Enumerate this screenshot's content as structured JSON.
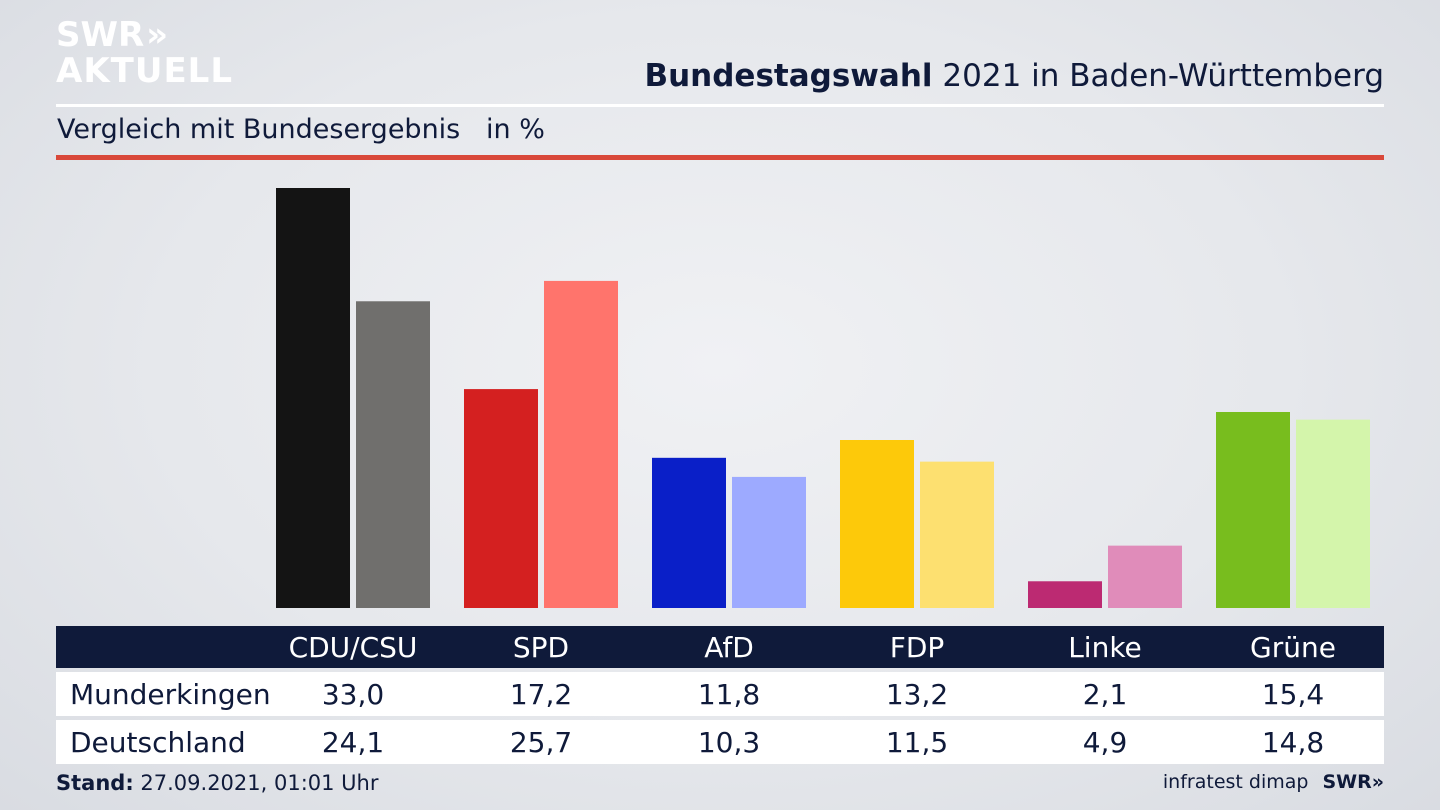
{
  "brand": {
    "line1": "SWR",
    "chevrons": "»",
    "line2": "AKTUELL"
  },
  "title": {
    "bold": "Bundestagswahl",
    "rest": " 2021 in Baden-Württemberg"
  },
  "subtitle": "Vergleich mit Bundesergebnis   in %",
  "chart_data": {
    "type": "bar",
    "categories": [
      "CDU/CSU",
      "SPD",
      "AfD",
      "FDP",
      "Linke",
      "Grüne"
    ],
    "series": [
      {
        "name": "Munderkingen",
        "values": [
          33.0,
          17.2,
          11.8,
          13.2,
          2.1,
          15.4
        ],
        "colors": [
          "#141414",
          "#d42020",
          "#0a1fc8",
          "#fdc90a",
          "#bc2a72",
          "#78bd1e"
        ]
      },
      {
        "name": "Deutschland",
        "values": [
          24.1,
          25.7,
          10.3,
          11.5,
          4.9,
          14.8
        ],
        "colors": [
          "#706f6d",
          "#ff746c",
          "#9daaff",
          "#fde070",
          "#e08cba",
          "#d4f5ab"
        ]
      }
    ],
    "title": "Bundestagswahl 2021 in Baden-Württemberg",
    "subtitle": "Vergleich mit Bundesergebnis in %",
    "ylim": [
      0,
      33.0
    ],
    "grid": false
  },
  "table": {
    "headers": [
      "CDU/CSU",
      "SPD",
      "AfD",
      "FDP",
      "Linke",
      "Grüne"
    ],
    "rows": [
      {
        "label": "Munderkingen",
        "values": [
          "33,0",
          "17,2",
          "11,8",
          "13,2",
          "2,1",
          "15,4"
        ]
      },
      {
        "label": "Deutschland",
        "values": [
          "24,1",
          "25,7",
          "10,3",
          "11,5",
          "4,9",
          "14,8"
        ]
      }
    ]
  },
  "footer": {
    "stand_label": "Stand:",
    "stand_value": " 27.09.2021, 01:01 Uhr",
    "source": "infratest dimap",
    "logo_small": "SWR»"
  },
  "colors": {
    "navy": "#0f1a3a",
    "accent_red": "#d9483a"
  }
}
